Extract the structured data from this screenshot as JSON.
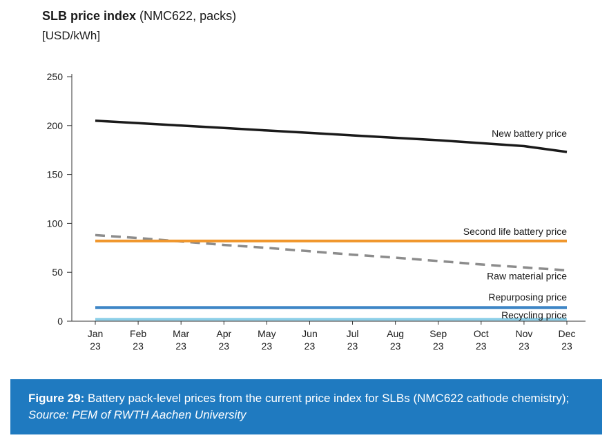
{
  "chart_data": {
    "type": "line",
    "title_bold": "SLB price index",
    "title_rest": " (NMC622, packs)",
    "ylabel": "[USD/kWh]",
    "xlabel": "",
    "ylim": [
      0,
      250
    ],
    "yticks": [
      0,
      50,
      100,
      150,
      200,
      250
    ],
    "categories": [
      [
        "Jan",
        "23"
      ],
      [
        "Feb",
        "23"
      ],
      [
        "Mar",
        "23"
      ],
      [
        "Apr",
        "23"
      ],
      [
        "May",
        "23"
      ],
      [
        "Jun",
        "23"
      ],
      [
        "Jul",
        "23"
      ],
      [
        "Aug",
        "23"
      ],
      [
        "Sep",
        "23"
      ],
      [
        "Oct",
        "23"
      ],
      [
        "Nov",
        "23"
      ],
      [
        "Dec",
        "23"
      ]
    ],
    "grid": false,
    "series": [
      {
        "name": "New battery price",
        "color": "#1a1a1a",
        "dash": false,
        "width": 3.5,
        "values": [
          205,
          202.5,
          200,
          197.5,
          195,
          192.5,
          190,
          187.5,
          185,
          182,
          179,
          173
        ]
      },
      {
        "name": "Second life battery price",
        "color": "#f0962c",
        "dash": false,
        "width": 4,
        "values": [
          82,
          82,
          82,
          82,
          82,
          82,
          82,
          82,
          82,
          82,
          82,
          82
        ]
      },
      {
        "name": "Raw material price",
        "color": "#8c8c8c",
        "dash": true,
        "width": 3.5,
        "values": [
          88,
          85,
          81.5,
          78,
          75,
          71.5,
          68,
          65,
          61.5,
          58,
          55,
          52
        ]
      },
      {
        "name": "Repurposing price",
        "color": "#3e86c6",
        "dash": false,
        "width": 4,
        "values": [
          14,
          14,
          14,
          14,
          14,
          14,
          14,
          14,
          14,
          14,
          14,
          14
        ]
      },
      {
        "name": "Recycling price",
        "color": "#8ccfe8",
        "dash": false,
        "width": 4,
        "values": [
          2,
          2,
          2,
          2,
          2,
          2,
          2,
          2,
          2,
          2,
          2,
          2
        ]
      }
    ]
  },
  "caption": {
    "label": "Figure 29:",
    "text": " Battery pack-level prices from the current price index for SLBs (NMC622 cathode chemistry); ",
    "source": "Source: PEM of RWTH Aachen University"
  }
}
